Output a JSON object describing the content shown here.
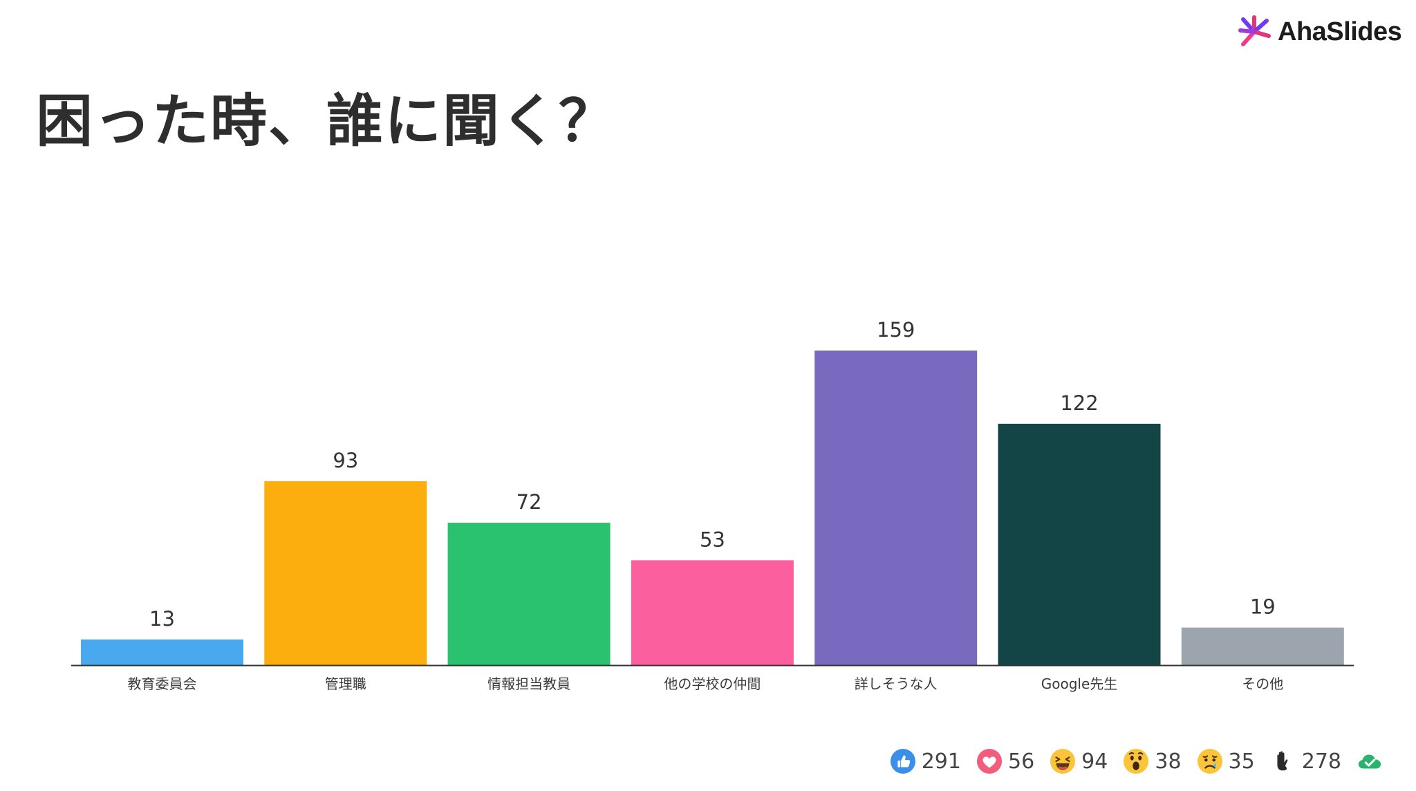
{
  "brand": {
    "logo_text": "AhaSlides"
  },
  "slide": {
    "title": "困った時、誰に聞く？"
  },
  "chart_data": {
    "type": "bar",
    "categories": [
      "教育委員会",
      "管理職",
      "情報担当教員",
      "他の学校の仲間",
      "詳しそうな人",
      "Google先生",
      "その他"
    ],
    "values": [
      13,
      93,
      72,
      53,
      159,
      122,
      19
    ],
    "colors": [
      "#4aa8ef",
      "#fbae0e",
      "#2ac26f",
      "#fc5f9d",
      "#796ac0",
      "#134546",
      "#9ca4ae"
    ],
    "ylim": [
      0,
      159
    ],
    "grid": false,
    "data_labels": true
  },
  "reactions": [
    {
      "name": "like",
      "icon": "thumbs-up-icon",
      "count": "291"
    },
    {
      "name": "heart",
      "icon": "heart-icon",
      "count": "56"
    },
    {
      "name": "laugh",
      "icon": "laughing-face-icon",
      "count": "94"
    },
    {
      "name": "wow",
      "icon": "surprised-face-icon",
      "count": "38"
    },
    {
      "name": "sad",
      "icon": "sad-face-icon",
      "count": "35"
    },
    {
      "name": "raised-hand",
      "icon": "raised-hand-icon",
      "count": "278"
    },
    {
      "name": "checked",
      "icon": "check-cloud-icon"
    }
  ]
}
